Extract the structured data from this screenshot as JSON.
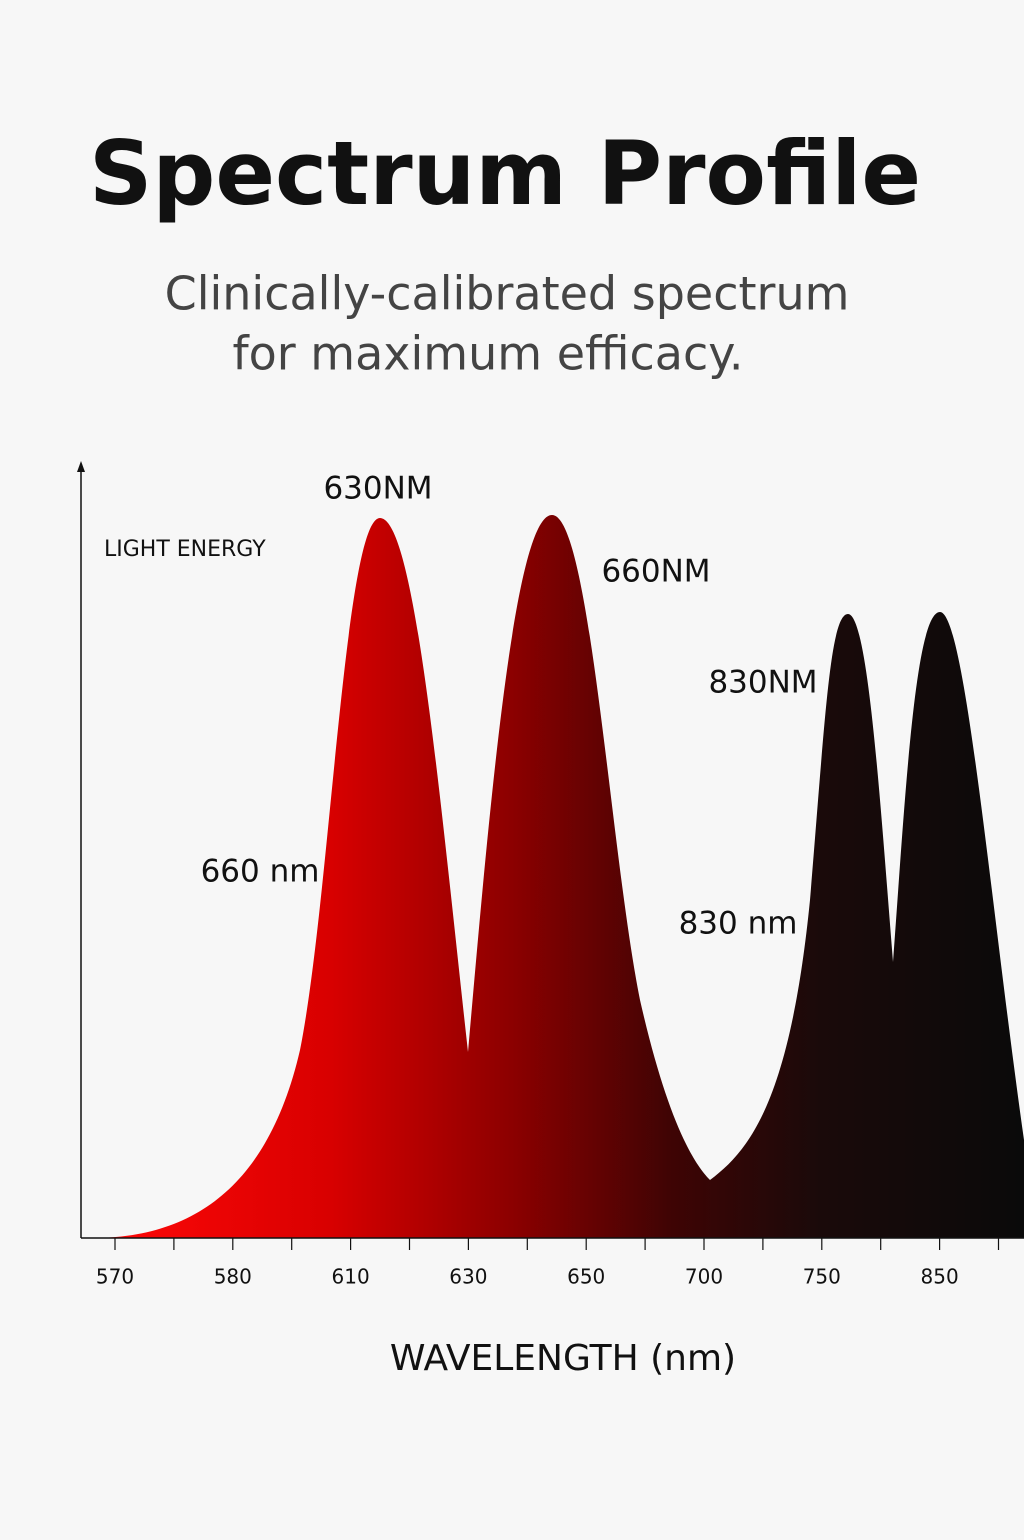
{
  "chart_data": {
    "type": "spectrum",
    "title": "Spectrum Profile",
    "subtitle": [
      "Clinically-calibrated spectrum",
      "for maximum efficacy."
    ],
    "y_label": "LIGHT ENERGY",
    "x_label": "WAVELENGTH (nm)",
    "categories": [
      "570",
      "580",
      "610",
      "630",
      "650",
      "700",
      "750",
      "850"
    ],
    "annotations": [
      "630NM",
      "660NM",
      "830NM",
      "660 nm",
      "830 nm"
    ]
  }
}
